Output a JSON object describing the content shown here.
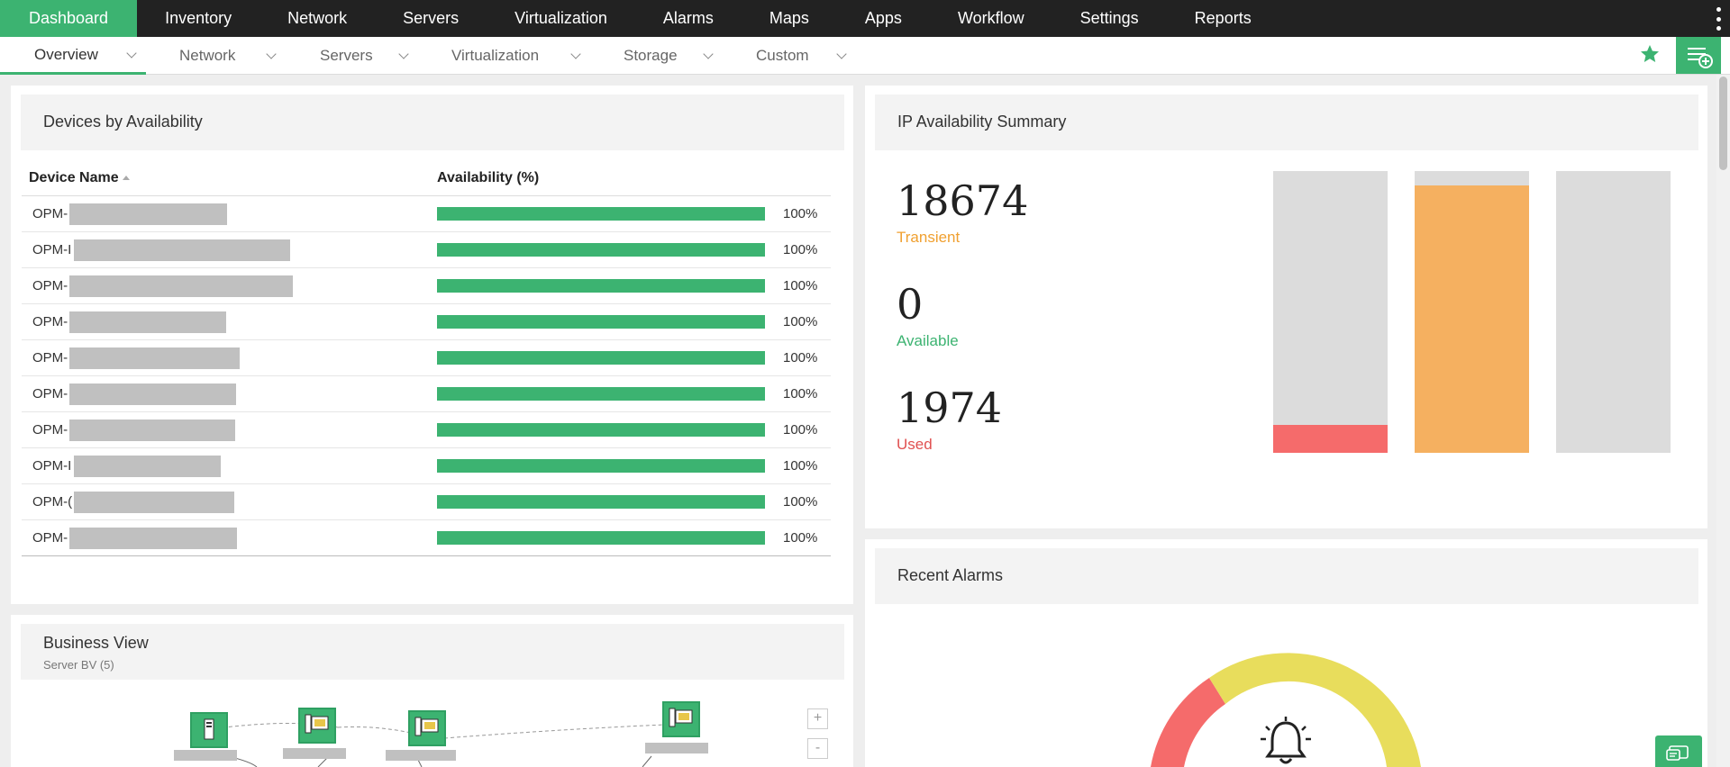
{
  "topnav": {
    "tabs": [
      {
        "label": "Dashboard"
      },
      {
        "label": "Inventory"
      },
      {
        "label": "Network"
      },
      {
        "label": "Servers"
      },
      {
        "label": "Virtualization"
      },
      {
        "label": "Alarms"
      },
      {
        "label": "Maps"
      },
      {
        "label": "Apps"
      },
      {
        "label": "Workflow"
      },
      {
        "label": "Settings"
      },
      {
        "label": "Reports"
      }
    ],
    "active": "Dashboard"
  },
  "subnav": {
    "tabs": [
      {
        "label": "Overview"
      },
      {
        "label": "Network"
      },
      {
        "label": "Servers"
      },
      {
        "label": "Virtualization"
      },
      {
        "label": "Storage"
      },
      {
        "label": "Custom"
      }
    ],
    "active": "Overview"
  },
  "devices_panel": {
    "title": "Devices by Availability",
    "col_name": "Device Name",
    "col_availability": "Availability (%)",
    "rows": [
      {
        "name": "OPM-",
        "availability": "100%",
        "value": 100
      },
      {
        "name": "OPM-I",
        "availability": "100%",
        "value": 100
      },
      {
        "name": "OPM-",
        "availability": "100%",
        "value": 100
      },
      {
        "name": "OPM-",
        "availability": "100%",
        "value": 100
      },
      {
        "name": "OPM-",
        "availability": "100%",
        "value": 100
      },
      {
        "name": "OPM-",
        "availability": "100%",
        "value": 100
      },
      {
        "name": "OPM-",
        "availability": "100%",
        "value": 100
      },
      {
        "name": "OPM-I",
        "availability": "100%",
        "value": 100
      },
      {
        "name": "OPM-(",
        "availability": "100%",
        "value": 100
      },
      {
        "name": "OPM-",
        "availability": "100%",
        "value": 100
      }
    ]
  },
  "ip_panel": {
    "title": "IP Availability Summary",
    "stats": [
      {
        "value": "18674",
        "label": "Transient",
        "color": "#f0a030"
      },
      {
        "value": "0",
        "label": "Available",
        "color": "#3cb371"
      },
      {
        "value": "1974",
        "label": "Used",
        "color": "#f15b5b"
      }
    ],
    "bars": [
      {
        "fill_fraction": 0.1,
        "color": "#f56b6b"
      },
      {
        "fill_fraction": 0.95,
        "color": "#f5b060"
      },
      {
        "fill_fraction": 0,
        "color": "#dcdcdc"
      }
    ]
  },
  "business_panel": {
    "title": "Business View",
    "subtitle": "Server BV (5)",
    "zoom_in": "+",
    "zoom_out": "-"
  },
  "alarms_panel": {
    "title": "Recent Alarms"
  },
  "colors": {
    "accent": "#3cb371",
    "topbar": "#222222"
  }
}
